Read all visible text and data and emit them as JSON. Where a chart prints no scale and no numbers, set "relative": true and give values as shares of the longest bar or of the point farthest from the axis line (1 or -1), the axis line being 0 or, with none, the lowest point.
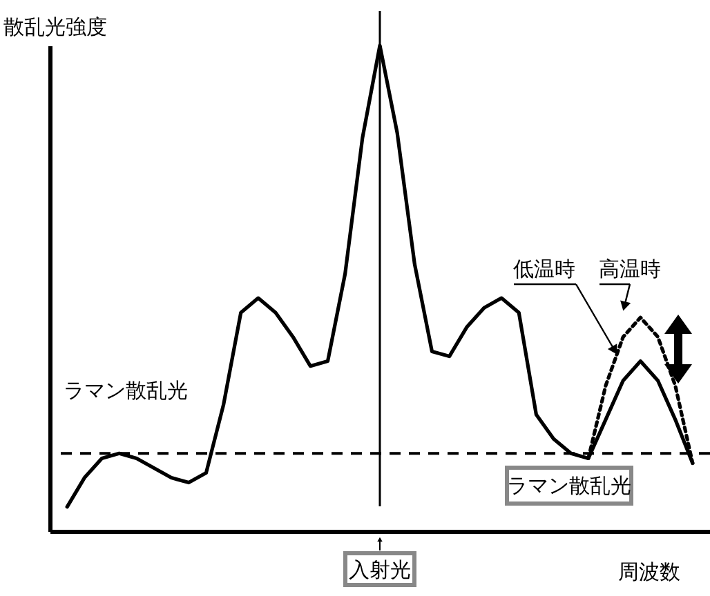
{
  "chart_data": {
    "type": "line",
    "relative": true,
    "xlabel": "周波数",
    "ylabel": "散乱光強度",
    "tick_labels": false,
    "grid": false,
    "legend": "right",
    "categories": [
      null,
      null,
      null,
      null,
      null,
      null,
      null,
      null,
      null,
      null,
      null,
      null,
      null,
      null,
      null,
      null,
      null,
      null,
      null,
      null,
      null,
      null,
      null,
      null,
      null,
      null,
      null,
      null,
      null,
      null,
      null,
      null,
      null,
      null,
      null,
      null,
      null
    ],
    "series": [
      {
        "name": "低温時",
        "color": "#000000",
        "line_style": "solid",
        "values": [
          0.05,
          0.11,
          0.15,
          0.16,
          0.15,
          0.13,
          0.11,
          0.1,
          0.12,
          0.26,
          0.45,
          0.48,
          0.45,
          0.4,
          0.34,
          0.35,
          0.53,
          0.81,
          1.0,
          0.82,
          0.55,
          0.37,
          0.36,
          0.42,
          0.46,
          0.48,
          0.45,
          0.24,
          0.19,
          0.16,
          0.15,
          0.23,
          0.31,
          0.35,
          0.31,
          0.23,
          0.14
        ]
      },
      {
        "name": "高温時",
        "color": "#000000",
        "line_style": "dotted",
        "values": [
          null,
          null,
          null,
          null,
          null,
          null,
          null,
          null,
          null,
          null,
          null,
          null,
          null,
          null,
          null,
          null,
          null,
          null,
          null,
          null,
          null,
          null,
          null,
          null,
          null,
          null,
          null,
          null,
          null,
          null,
          0.15,
          0.3,
          0.4,
          0.44,
          0.4,
          0.3,
          0.14
        ]
      }
    ],
    "ref_lines": [
      {
        "axis": "y",
        "value": 0.16,
        "line_style": "dashed"
      },
      {
        "axis": "x",
        "label": "入射光"
      }
    ],
    "annotations": [
      "ラマン散乱光",
      "ラマン散乱光"
    ]
  }
}
